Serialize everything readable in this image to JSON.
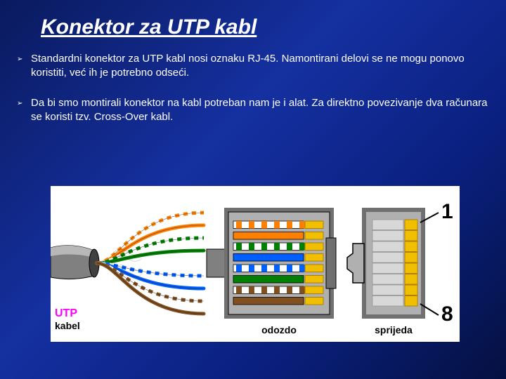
{
  "title": "Konektor za UTP kabl",
  "bullets": [
    "Standardni konektor za UTP kabl nosi oznaku RJ-45. Namontirani delovi se ne mogu ponovo koristiti, već ih je potrebno odseći.",
    "Da bi smo montirali konektor na kabl potreban nam je i alat. Za direktno povezivanje dva računara se koristi tzv. Cross-Over kabl."
  ],
  "diagram": {
    "background": "#ffffff",
    "utp_label": "UTP",
    "cable_label": "kabel",
    "bottom_label": "odozdo",
    "front_label": "sprijeda",
    "pin_top": "1",
    "pin_bottom": "8",
    "jacket_color": "#808080",
    "jacket_hilite": "#b8b8b8",
    "connector_body": "#b0b0b0",
    "connector_edge": "#707070",
    "pin_gold": "#f0c000",
    "pin_gold_dark": "#b08000",
    "pairs": [
      {
        "c1": "#ffffff",
        "s1": "#ff8000",
        "c2": "#ff8000"
      },
      {
        "c1": "#ffffff",
        "s1": "#008000",
        "c2": "#008000"
      },
      {
        "c1": "#ffffff",
        "s1": "#0060ff",
        "c2": "#0060ff"
      },
      {
        "c1": "#ffffff",
        "s1": "#805020",
        "c2": "#805020"
      }
    ],
    "wire_order_bottom": [
      {
        "fill": "#ffffff",
        "stripe": "#ff8000"
      },
      {
        "fill": "#ff8000",
        "stripe": null
      },
      {
        "fill": "#ffffff",
        "stripe": "#008000"
      },
      {
        "fill": "#0060ff",
        "stripe": null
      },
      {
        "fill": "#ffffff",
        "stripe": "#0060ff"
      },
      {
        "fill": "#008000",
        "stripe": null
      },
      {
        "fill": "#ffffff",
        "stripe": "#805020"
      },
      {
        "fill": "#805020",
        "stripe": null
      }
    ]
  }
}
